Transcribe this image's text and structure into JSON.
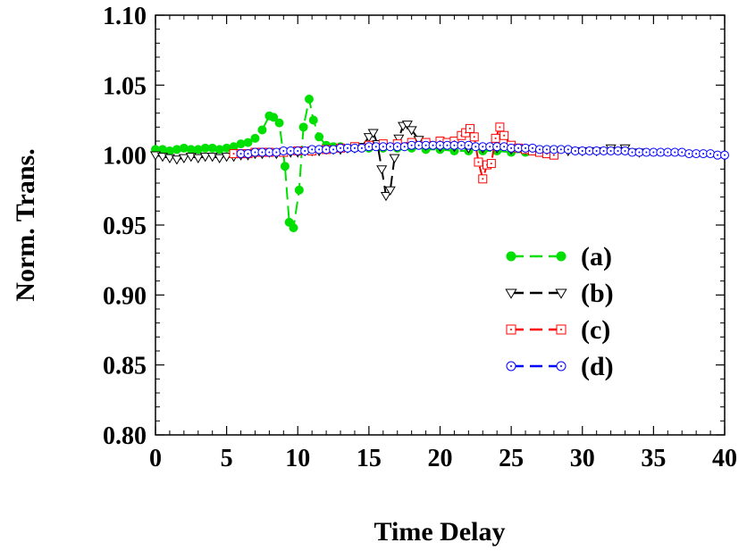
{
  "chart_data": {
    "type": "line",
    "xlabel": "Time Delay",
    "ylabel": "Norm. Trans.",
    "xlim": [
      0,
      40
    ],
    "ylim": [
      0.8,
      1.1
    ],
    "x_ticks": [
      0,
      5,
      10,
      15,
      20,
      25,
      30,
      35,
      40
    ],
    "y_ticks": [
      0.8,
      0.85,
      0.9,
      0.95,
      1.0,
      1.05,
      1.1
    ],
    "y_tick_labels": [
      "0.80",
      "0.85",
      "0.90",
      "0.95",
      "1.00",
      "1.05",
      "1.10"
    ],
    "grid": false,
    "legend_position": "right-middle",
    "series": [
      {
        "name": "(a)",
        "color": "#00e000",
        "marker": "filled-circle",
        "line": "dashed",
        "x": [
          0,
          0.5,
          1,
          1.5,
          2,
          2.5,
          3,
          3.5,
          4,
          4.5,
          5,
          5.5,
          6,
          6.5,
          7,
          7.5,
          8,
          8.3,
          8.7,
          9.1,
          9.4,
          9.7,
          10.1,
          10.4,
          10.8,
          11.1,
          11.5,
          12,
          12.5,
          13,
          14,
          15,
          16,
          17,
          18,
          19,
          20,
          21,
          22,
          23,
          24,
          25,
          26,
          27,
          28
        ],
        "y": [
          1.004,
          1.004,
          1.003,
          1.004,
          1.005,
          1.004,
          1.004,
          1.005,
          1.005,
          1.004,
          1.005,
          1.006,
          1.008,
          1.009,
          1.012,
          1.018,
          1.028,
          1.027,
          1.023,
          0.992,
          0.952,
          0.948,
          0.975,
          1.02,
          1.04,
          1.025,
          1.013,
          1.007,
          1.006,
          1.006,
          1.005,
          1.005,
          1.005,
          1.005,
          1.005,
          1.004,
          1.004,
          1.003,
          1.003,
          1.003,
          1.003,
          1.002,
          1.002,
          1.002,
          1.001
        ]
      },
      {
        "name": "(b)",
        "color": "#000000",
        "marker": "open-triangle-down",
        "line": "dashed",
        "x": [
          0,
          0.5,
          1,
          1.5,
          2,
          2.5,
          3,
          3.5,
          4,
          4.5,
          5,
          5.5,
          6,
          6.5,
          7,
          7.5,
          8,
          8.5,
          9,
          9.5,
          10,
          10.5,
          11,
          11.5,
          12,
          12.5,
          13,
          13.5,
          14,
          14.5,
          15,
          15.3,
          15.6,
          15.9,
          16.2,
          16.5,
          16.8,
          17.1,
          17.4,
          17.7,
          18,
          18.5,
          19,
          20,
          21,
          22,
          23,
          24,
          25,
          26,
          27,
          28,
          29,
          30,
          31,
          32,
          33,
          34
        ],
        "y": [
          1.0,
          0.999,
          0.998,
          0.997,
          0.998,
          0.999,
          0.998,
          0.999,
          0.999,
          0.998,
          0.999,
          0.999,
          1.0,
          1.0,
          1.001,
          1.001,
          1.002,
          1.001,
          1.002,
          1.002,
          1.002,
          1.003,
          1.003,
          1.003,
          1.004,
          1.004,
          1.004,
          1.005,
          1.005,
          1.006,
          1.013,
          1.016,
          1.008,
          0.99,
          0.971,
          0.975,
          0.998,
          1.012,
          1.021,
          1.022,
          1.018,
          1.011,
          1.007,
          1.006,
          1.006,
          1.005,
          1.005,
          1.005,
          1.004,
          1.004,
          1.003,
          1.003,
          1.003,
          1.003,
          1.003,
          1.005,
          1.005,
          1.002
        ]
      },
      {
        "name": "(c)",
        "color": "#ff0000",
        "marker": "open-square-dot",
        "line": "dashed",
        "x": [
          5.5,
          6,
          6.5,
          7,
          7.5,
          8,
          9,
          10,
          11,
          12,
          13,
          14,
          15,
          16,
          17,
          18,
          19,
          20,
          20.5,
          21,
          21.5,
          21.8,
          22.1,
          22.4,
          22.7,
          23,
          23.3,
          23.6,
          23.9,
          24.2,
          24.5,
          25,
          25.5,
          26,
          26.5,
          27,
          27.5,
          28
        ],
        "y": [
          1.001,
          1.001,
          1.001,
          1.002,
          1.002,
          1.002,
          1.002,
          1.003,
          1.003,
          1.004,
          1.005,
          1.006,
          1.007,
          1.008,
          1.008,
          1.009,
          1.009,
          1.01,
          1.009,
          1.01,
          1.014,
          1.016,
          1.019,
          1.013,
          0.995,
          0.983,
          0.993,
          0.994,
          1.012,
          1.02,
          1.014,
          1.007,
          1.005,
          1.004,
          1.003,
          1.002,
          1.001,
          1.0
        ]
      },
      {
        "name": "(d)",
        "color": "#0000ff",
        "marker": "open-circle-dot",
        "line": "dashed",
        "x": [
          6,
          6.5,
          7,
          7.5,
          8,
          8.5,
          9,
          9.5,
          10,
          10.5,
          11,
          11.5,
          12,
          12.5,
          13,
          13.5,
          14,
          14.5,
          15,
          15.5,
          16,
          16.5,
          17,
          17.5,
          18,
          18.5,
          19,
          19.5,
          20,
          20.5,
          21,
          21.5,
          22,
          22.5,
          23,
          23.5,
          24,
          24.5,
          25,
          25.5,
          26,
          26.5,
          27,
          27.5,
          28,
          28.5,
          29,
          29.5,
          30,
          30.5,
          31,
          31.5,
          32,
          32.5,
          33,
          33.5,
          34,
          34.5,
          35,
          35.5,
          36,
          36.5,
          37,
          37.5,
          38,
          38.5,
          39,
          39.5,
          40
        ],
        "y": [
          1.001,
          1.001,
          1.002,
          1.002,
          1.002,
          1.002,
          1.003,
          1.003,
          1.003,
          1.003,
          1.004,
          1.004,
          1.004,
          1.004,
          1.005,
          1.005,
          1.005,
          1.005,
          1.006,
          1.006,
          1.006,
          1.006,
          1.006,
          1.006,
          1.007,
          1.007,
          1.007,
          1.007,
          1.007,
          1.007,
          1.007,
          1.007,
          1.007,
          1.006,
          1.006,
          1.006,
          1.006,
          1.006,
          1.005,
          1.005,
          1.005,
          1.005,
          1.004,
          1.004,
          1.004,
          1.004,
          1.004,
          1.003,
          1.003,
          1.003,
          1.003,
          1.003,
          1.003,
          1.003,
          1.003,
          1.002,
          1.002,
          1.002,
          1.002,
          1.002,
          1.002,
          1.002,
          1.002,
          1.001,
          1.001,
          1.001,
          1.001,
          1.0,
          1.0
        ]
      }
    ]
  }
}
